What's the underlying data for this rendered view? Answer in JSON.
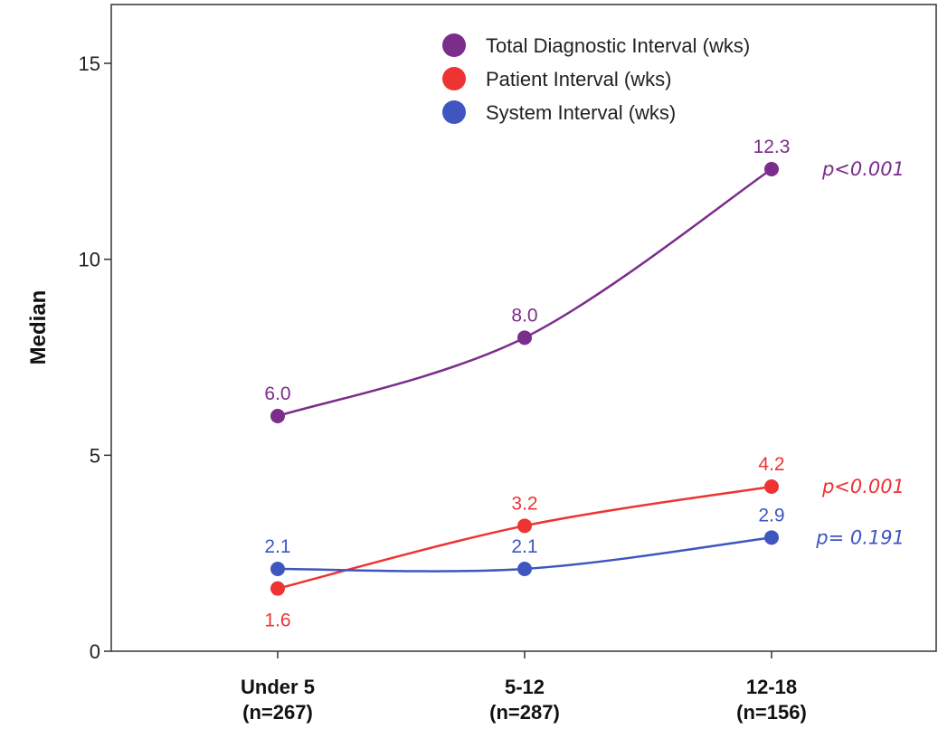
{
  "chart_data": {
    "type": "line",
    "ylabel": "Median",
    "ylim": [
      0,
      16.5
    ],
    "yticks": [
      "0",
      "5",
      "10",
      "15"
    ],
    "grid": false,
    "legend_position": "top-right",
    "categories": [
      {
        "line1": "Under 5",
        "line2": "(n=267)"
      },
      {
        "line1": "5-12",
        "line2": "(n=287)"
      },
      {
        "line1": "12-18",
        "line2": "(n=156)"
      }
    ],
    "series": [
      {
        "name": "Total Diagnostic Interval (wks)",
        "color": "#7b2d8b",
        "values": [
          6.0,
          8.0,
          12.3
        ],
        "labels": [
          "6.0",
          "8.0",
          "12.3"
        ],
        "label_side": [
          "above",
          "above",
          "above"
        ],
        "p_value": "p<0.001"
      },
      {
        "name": "Patient Interval (wks)",
        "color": "#ee3333",
        "values": [
          1.6,
          3.2,
          4.2
        ],
        "labels": [
          "1.6",
          "3.2",
          "4.2"
        ],
        "label_side": [
          "below",
          "above",
          "above"
        ],
        "p_value": "p<0.001"
      },
      {
        "name": "System Interval (wks)",
        "color": "#3f56c0",
        "values": [
          2.1,
          2.1,
          2.9
        ],
        "labels": [
          "2.1",
          "2.1",
          "2.9"
        ],
        "label_side": [
          "above",
          "above",
          "above"
        ],
        "p_value": "p= 0.191"
      }
    ]
  }
}
